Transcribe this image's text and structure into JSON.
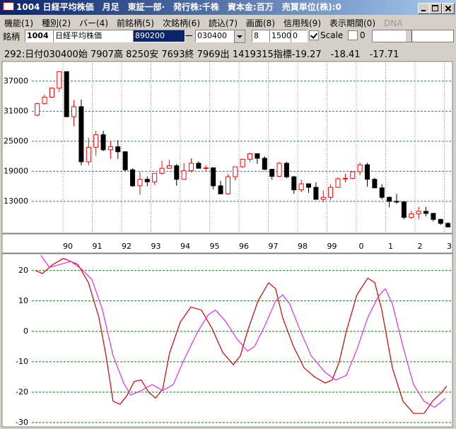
{
  "window": {
    "title": "1004 日経平均株価　月足　東証一部·　発行株:千株　資本金:百万　売買単位(株):0"
  },
  "menu": [
    "機能(1)",
    "種別(2)",
    "バー(4)",
    "前銘柄(5)",
    "次銘柄(6)",
    "読込(7)",
    "画面(8)",
    "信用残(9)",
    "表示期間(0)",
    "DNA"
  ],
  "toolbar": {
    "label": "銘柄",
    "code": "1004",
    "name": "日経平均株価",
    "value": "890200",
    "date": "030400",
    "field1": "8",
    "field2": "1500",
    "field3": "0",
    "scale_label": "Scale",
    "field4": "0"
  },
  "info": "292:日付030400始 7907高 8250安 7693終 7969出 1419315指標-19.27　-18.41　-17.71",
  "chart_data": [
    {
      "type": "candlestick",
      "up_color": "#ff0000",
      "down_color": "#000000",
      "grid_color": "#3c6e9c",
      "xgrid_color": "#888888",
      "xlim": [
        1988.94,
        2003.23
      ],
      "ylim": [
        7200,
        40500
      ],
      "yticks": [
        13000,
        19000,
        25000,
        31000,
        37000
      ],
      "xticks": [
        {
          "value": 1990,
          "label": "90"
        },
        {
          "value": 1991,
          "label": "91"
        },
        {
          "value": 1992,
          "label": "92"
        },
        {
          "value": 1993,
          "label": "93"
        },
        {
          "value": 1994,
          "label": "94"
        },
        {
          "value": 1995,
          "label": "95"
        },
        {
          "value": 1996,
          "label": "96"
        },
        {
          "value": 1997,
          "label": "97"
        },
        {
          "value": 1998,
          "label": "98"
        },
        {
          "value": 1999,
          "label": "99"
        },
        {
          "value": 2000,
          "label": "0"
        },
        {
          "value": 2001,
          "label": "1"
        },
        {
          "value": 2002,
          "label": "2"
        },
        {
          "value": 2003,
          "label": "3"
        }
      ],
      "x": [
        1989.125,
        1989.375,
        1989.625,
        1989.875,
        1990.125,
        1990.375,
        1990.625,
        1990.875,
        1991.125,
        1991.375,
        1991.625,
        1991.875,
        1992.125,
        1992.375,
        1992.625,
        1992.875,
        1993.125,
        1993.375,
        1993.625,
        1993.875,
        1994.125,
        1994.375,
        1994.625,
        1994.875,
        1995.125,
        1995.375,
        1995.625,
        1995.875,
        1996.125,
        1996.375,
        1996.625,
        1996.875,
        1997.125,
        1997.375,
        1997.625,
        1997.875,
        1998.125,
        1998.375,
        1998.625,
        1998.875,
        1999.125,
        1999.375,
        1999.625,
        1999.875,
        2000.125,
        2000.375,
        2000.625,
        2000.875,
        2001.125,
        2001.375,
        2001.625,
        2001.875,
        2002.125,
        2002.375,
        2002.625,
        2002.875,
        2003.125
      ],
      "open": [
        30200,
        32500,
        33800,
        35600,
        38900,
        29900,
        31900,
        20900,
        23800,
        26300,
        23300,
        23900,
        22900,
        19300,
        16100,
        17400,
        16900,
        18600,
        19600,
        20100,
        17400,
        19100,
        20600,
        19600,
        19700,
        16100,
        14500,
        17900,
        19900,
        21400,
        22500,
        21600,
        19400,
        18000,
        20600,
        17900,
        15300,
        16500,
        15800,
        13400,
        13800,
        15800,
        17500,
        17600,
        18900,
        20300,
        17400,
        15700,
        13800,
        13000,
        12900,
        9800,
        10500,
        11000,
        10600,
        9400,
        8600
      ],
      "high": [
        32700,
        34300,
        35800,
        38900,
        38900,
        33200,
        33300,
        25700,
        27100,
        27100,
        25000,
        25200,
        23000,
        19600,
        18900,
        18000,
        18600,
        21100,
        21300,
        20500,
        20600,
        21600,
        21000,
        20200,
        19800,
        17100,
        18400,
        19900,
        21500,
        22700,
        22600,
        22000,
        19500,
        20900,
        20900,
        18100,
        17300,
        16600,
        16800,
        15200,
        16400,
        17800,
        18500,
        18900,
        20800,
        20700,
        17700,
        16400,
        14000,
        14500,
        12900,
        11100,
        11900,
        11900,
        10700,
        9500,
        8800
      ],
      "low": [
        30000,
        32300,
        33600,
        34800,
        29800,
        28000,
        20200,
        20200,
        22100,
        23000,
        21500,
        21500,
        19000,
        15900,
        14300,
        16000,
        16300,
        18300,
        19500,
        16100,
        17300,
        18800,
        19600,
        18900,
        15400,
        14500,
        14300,
        17200,
        19700,
        20900,
        20500,
        19200,
        17300,
        17800,
        17600,
        14500,
        14800,
        14700,
        13400,
        12800,
        13200,
        15700,
        16800,
        17400,
        18200,
        15900,
        15600,
        13400,
        11800,
        12500,
        9400,
        9500,
        9400,
        10000,
        9000,
        8300,
        7800
      ],
      "close": [
        32500,
        33800,
        35600,
        38900,
        29900,
        31900,
        20900,
        23800,
        26300,
        23300,
        23900,
        22900,
        19300,
        16100,
        17400,
        16900,
        18600,
        19600,
        20100,
        17400,
        19100,
        20600,
        19600,
        19700,
        16100,
        14500,
        17900,
        19900,
        21400,
        22500,
        21600,
        19400,
        18000,
        20600,
        17900,
        15300,
        16500,
        15800,
        13400,
        13800,
        15800,
        17500,
        17600,
        18900,
        20300,
        17400,
        15700,
        13800,
        13000,
        12900,
        9800,
        10500,
        11000,
        10600,
        9400,
        8600,
        7900
      ]
    },
    {
      "type": "line",
      "grid_color": "#008000",
      "xlim": [
        1988.94,
        2003.23
      ],
      "ylim": [
        -30.5,
        25.3
      ],
      "yticks": [
        -30,
        -20,
        -10,
        0,
        10,
        20
      ],
      "series": [
        {
          "color": "#cc0000",
          "x": [
            1989.06,
            1989.3,
            1989.66,
            1990.02,
            1990.51,
            1990.87,
            1991.23,
            1991.47,
            1991.71,
            1991.95,
            1992.19,
            1992.43,
            1992.67,
            1992.92,
            1993.16,
            1993.4,
            1993.64,
            1994.0,
            1994.36,
            1994.72,
            1995.08,
            1995.45,
            1995.81,
            1996.05,
            1996.29,
            1996.65,
            1997.01,
            1997.25,
            1997.49,
            1997.86,
            1998.22,
            1998.58,
            1998.94,
            1999.18,
            1999.42,
            1999.66,
            2000.02,
            2000.39,
            2000.63,
            2000.87,
            2001.23,
            2001.59,
            2001.95,
            2002.31,
            2002.6,
            2002.92,
            2003.08
          ],
          "values": [
            20,
            19,
            22,
            24,
            22,
            16,
            4.5,
            -8,
            -23,
            -24,
            -21,
            -16.5,
            -16,
            -20,
            -22,
            -19,
            -7,
            3,
            8,
            7,
            1,
            -7,
            -11,
            -8,
            0,
            10,
            16,
            14,
            4.5,
            -5,
            -12,
            -15,
            -17,
            -16,
            -10,
            0,
            12,
            17.5,
            16,
            7,
            -12,
            -23,
            -27,
            -27,
            -23,
            -20,
            -18
          ]
        },
        {
          "color": "#e030e0",
          "x": [
            1989.25,
            1989.54,
            1989.9,
            1990.27,
            1990.63,
            1990.99,
            1991.35,
            1991.71,
            1992.07,
            1992.31,
            1992.67,
            1993.04,
            1993.4,
            1993.76,
            1994.12,
            1994.6,
            1994.96,
            1995.2,
            1995.57,
            1995.93,
            1996.29,
            1996.53,
            1996.89,
            1997.25,
            1997.49,
            1997.73,
            1998.1,
            1998.46,
            1998.94,
            1999.3,
            1999.66,
            2000.02,
            2000.39,
            2000.75,
            2000.99,
            2001.23,
            2001.59,
            2001.95,
            2002.31,
            2002.67,
            2003.04
          ],
          "values": [
            25,
            21,
            22,
            23,
            20.5,
            17,
            7,
            -8,
            -17,
            -21,
            -19.5,
            -17.5,
            -19.5,
            -17.5,
            -9.5,
            0,
            5.5,
            7,
            3,
            -2.5,
            -6.5,
            -5,
            2,
            10,
            12,
            9,
            0,
            -8,
            -13.5,
            -16,
            -14.5,
            -6,
            4.5,
            11.5,
            14,
            9,
            -5,
            -17.5,
            -23,
            -25,
            -22
          ]
        }
      ]
    }
  ]
}
